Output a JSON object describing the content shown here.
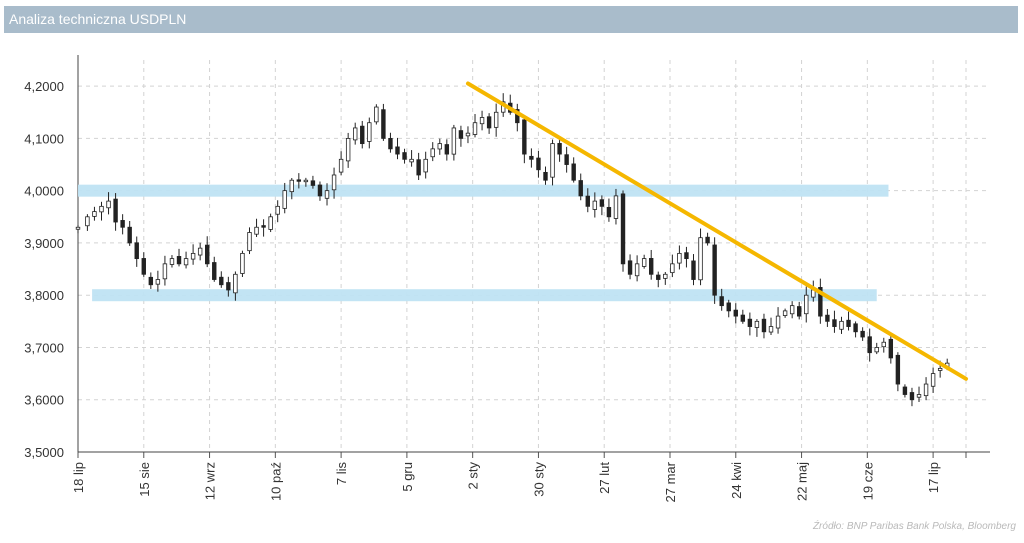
{
  "title": "Analiza techniczna USDPLN",
  "source": "Źródło: BNP Paribas Bank Polska, Bloomberg",
  "colors": {
    "title_bg": "#a9bccb",
    "candles": "#222222",
    "trendline": "#f5b700",
    "zones": "#bfe3f3",
    "grid": "#d3d3d3"
  },
  "chart_data": {
    "type": "candlestick",
    "title": "",
    "xlabel": "",
    "ylabel": "",
    "ylim": [
      3.5,
      4.25
    ],
    "grid": true,
    "legend": "none",
    "y_ticks": [
      "3,5000",
      "3,6000",
      "3,7000",
      "3,8000",
      "3,9000",
      "4,0000",
      "4,1000",
      "4,2000"
    ],
    "y_tick_values": [
      3.5,
      3.6,
      3.7,
      3.8,
      3.9,
      4.0,
      4.1,
      4.2
    ],
    "x_ticks": [
      "18 lip",
      "15 sie",
      "12 wrz",
      "10 paź",
      "7 lis",
      "5 gru",
      "2 sty",
      "30 sty",
      "27 lut",
      "27 mar",
      "24 kwi",
      "22 maj",
      "19 cze",
      "17 lip"
    ],
    "x_tick_days": [
      0,
      28,
      56,
      84,
      112,
      140,
      168,
      196,
      224,
      252,
      280,
      308,
      336,
      364
    ],
    "x_max_day": 378,
    "series": [
      {
        "values": [
          [
            0,
            3.93
          ],
          [
            4,
            3.95
          ],
          [
            7,
            3.96
          ],
          [
            10,
            3.97
          ],
          [
            13,
            3.98
          ],
          [
            16,
            3.94
          ],
          [
            19,
            3.93
          ],
          [
            22,
            3.9
          ],
          [
            25,
            3.87
          ],
          [
            28,
            3.84
          ],
          [
            31,
            3.82
          ],
          [
            34,
            3.83
          ],
          [
            37,
            3.86
          ],
          [
            40,
            3.87
          ],
          [
            43,
            3.86
          ],
          [
            46,
            3.87
          ],
          [
            49,
            3.88
          ],
          [
            52,
            3.89
          ],
          [
            55,
            3.86
          ],
          [
            58,
            3.83
          ],
          [
            61,
            3.82
          ],
          [
            64,
            3.81
          ],
          [
            67,
            3.84
          ],
          [
            70,
            3.88
          ],
          [
            73,
            3.92
          ],
          [
            76,
            3.93
          ],
          [
            79,
            3.93
          ],
          [
            82,
            3.95
          ],
          [
            85,
            3.97
          ],
          [
            88,
            4.0
          ],
          [
            91,
            4.02
          ],
          [
            94,
            4.02
          ],
          [
            97,
            4.02
          ],
          [
            100,
            4.01
          ],
          [
            103,
            3.99
          ],
          [
            106,
            4.0
          ],
          [
            109,
            4.03
          ],
          [
            112,
            4.06
          ],
          [
            115,
            4.1
          ],
          [
            118,
            4.12
          ],
          [
            121,
            4.09
          ],
          [
            124,
            4.13
          ],
          [
            127,
            4.16
          ],
          [
            130,
            4.1
          ],
          [
            133,
            4.08
          ],
          [
            136,
            4.07
          ],
          [
            139,
            4.06
          ],
          [
            142,
            4.06
          ],
          [
            145,
            4.03
          ],
          [
            148,
            4.06
          ],
          [
            151,
            4.08
          ],
          [
            154,
            4.09
          ],
          [
            157,
            4.07
          ],
          [
            160,
            4.12
          ],
          [
            163,
            4.1
          ],
          [
            166,
            4.11
          ],
          [
            169,
            4.13
          ],
          [
            172,
            4.14
          ],
          [
            175,
            4.12
          ],
          [
            178,
            4.15
          ],
          [
            181,
            4.17
          ],
          [
            184,
            4.15
          ],
          [
            187,
            4.13
          ],
          [
            190,
            4.07
          ],
          [
            193,
            4.06
          ],
          [
            196,
            4.04
          ],
          [
            199,
            4.02
          ],
          [
            202,
            4.09
          ],
          [
            205,
            4.07
          ],
          [
            208,
            4.05
          ],
          [
            211,
            4.02
          ],
          [
            214,
            3.99
          ],
          [
            217,
            3.97
          ],
          [
            220,
            3.98
          ],
          [
            223,
            3.97
          ],
          [
            226,
            3.95
          ],
          [
            229,
            3.99
          ],
          [
            232,
            3.86
          ],
          [
            235,
            3.84
          ],
          [
            238,
            3.86
          ],
          [
            241,
            3.87
          ],
          [
            244,
            3.84
          ],
          [
            247,
            3.83
          ],
          [
            250,
            3.84
          ],
          [
            253,
            3.86
          ],
          [
            256,
            3.88
          ],
          [
            259,
            3.87
          ],
          [
            262,
            3.83
          ],
          [
            265,
            3.91
          ],
          [
            268,
            3.9
          ],
          [
            271,
            3.8
          ],
          [
            274,
            3.78
          ],
          [
            277,
            3.77
          ],
          [
            280,
            3.76
          ],
          [
            283,
            3.75
          ],
          [
            286,
            3.74
          ],
          [
            289,
            3.75
          ],
          [
            292,
            3.73
          ],
          [
            295,
            3.74
          ],
          [
            298,
            3.76
          ],
          [
            301,
            3.77
          ],
          [
            304,
            3.78
          ],
          [
            307,
            3.76
          ],
          [
            310,
            3.8
          ],
          [
            313,
            3.81
          ],
          [
            316,
            3.76
          ],
          [
            319,
            3.75
          ],
          [
            322,
            3.74
          ],
          [
            325,
            3.75
          ],
          [
            328,
            3.74
          ],
          [
            331,
            3.73
          ],
          [
            334,
            3.72
          ],
          [
            337,
            3.69
          ],
          [
            340,
            3.7
          ],
          [
            343,
            3.71
          ],
          [
            346,
            3.68
          ],
          [
            349,
            3.63
          ],
          [
            352,
            3.61
          ],
          [
            355,
            3.6
          ],
          [
            358,
            3.61
          ],
          [
            361,
            3.63
          ],
          [
            364,
            3.65
          ],
          [
            367,
            3.66
          ],
          [
            370,
            3.67
          ]
        ]
      }
    ],
    "trendline": [
      [
        166,
        4.205
      ],
      [
        378,
        3.64
      ]
    ],
    "zones": [
      {
        "value": 4.0,
        "x_from_day": 0,
        "x_to_day": 345
      },
      {
        "value": 3.8,
        "x_from_day": 6,
        "x_to_day": 340
      }
    ]
  }
}
